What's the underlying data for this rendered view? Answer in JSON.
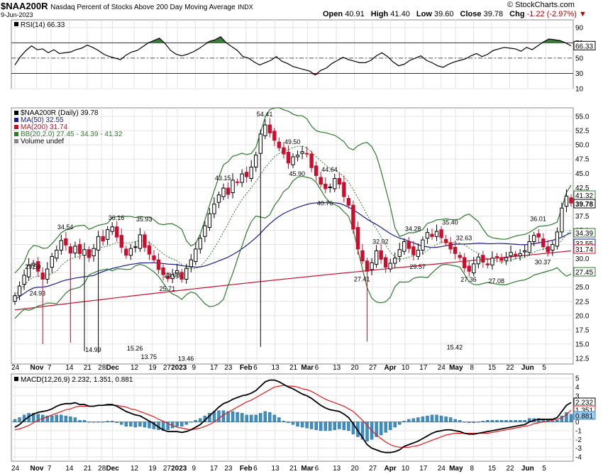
{
  "header": {
    "symbol": "$NAA200R",
    "description": "Nasdaq Percent of Stocks Above 200 Day Moving Average",
    "exchange": "INDX",
    "date": "9-Jun-2023",
    "open_label": "Open",
    "open": "40.91",
    "high_label": "High",
    "high": "41.40",
    "low_label": "Low",
    "low": "39.60",
    "close_label": "Close",
    "close": "39.78",
    "chg_label": "Chg",
    "chg": "-1.22 (-2.97%)",
    "watermark": "© StockCharts.com"
  },
  "colors": {
    "up": "#000000",
    "down": "#c8102e",
    "ma50": "#1a1a8c",
    "ma200": "#c8102e",
    "bb": "#2d7a2d",
    "macd": "#000000",
    "signal": "#e31a1c",
    "hist": "#3a8fc5"
  },
  "chart_data": [
    {
      "type": "line",
      "title": "RSI(14) 66.33",
      "legend": [
        {
          "text": "RSI(14) 66.33"
        }
      ],
      "ylim": [
        10,
        100
      ],
      "y_ticks": [
        "90",
        "70",
        "50",
        "30",
        "10"
      ],
      "levels": [
        70,
        50,
        30
      ],
      "last_value": "66.33",
      "series": [
        {
          "name": "RSI(14)",
          "values": [
            41,
            52,
            60,
            66,
            61,
            62,
            57,
            61,
            56,
            57,
            58,
            61,
            63,
            67,
            64,
            60,
            55,
            52,
            50,
            48,
            54,
            58,
            60,
            65,
            70,
            73,
            76,
            69,
            60,
            55,
            53,
            55,
            58,
            62,
            67,
            72,
            74,
            78,
            70,
            65,
            60,
            52,
            50,
            45,
            41,
            44,
            47,
            52,
            46,
            43,
            39,
            37,
            35,
            33,
            28,
            34,
            37,
            43,
            47,
            51,
            48,
            46,
            44,
            44,
            47,
            53,
            57,
            52,
            45,
            40,
            42,
            47,
            50,
            53,
            47,
            44,
            40,
            38,
            42,
            45,
            47,
            49,
            53,
            56,
            52,
            55,
            60,
            62,
            64,
            63,
            62,
            59,
            64,
            61,
            66,
            71,
            75,
            74,
            73,
            70,
            66
          ]
        }
      ]
    },
    {
      "type": "candlestick",
      "legend": [
        {
          "text": "$NAA200R (Daily) 39.78"
        },
        {
          "text": "MA(50) 32.55"
        },
        {
          "text": "MA(200) 31.74"
        },
        {
          "text": "BB(20,2.0) 27.45 - 34.39 - 41.32"
        },
        {
          "text": "Volume undef"
        }
      ],
      "ylim": [
        11.5,
        56.5
      ],
      "y_ticks": [
        "55.0",
        "52.5",
        "50.0",
        "47.5",
        "45.0",
        "42.5",
        "40.0",
        "37.5",
        "35.0",
        "32.5",
        "30.0",
        "27.5",
        "25.0",
        "22.5",
        "20.0",
        "17.5",
        "15.0",
        "12.5"
      ],
      "right_labels": [
        "41.32",
        "39.78",
        "34.39",
        "32.55",
        "31.74",
        "27.45"
      ],
      "annotations": [
        {
          "text": "29.59",
          "x": 4,
          "y": 29.59
        },
        {
          "text": "24.93",
          "x": 5,
          "y": 24.93
        },
        {
          "text": "34.54",
          "x": 11,
          "y": 34.54
        },
        {
          "text": "14.99",
          "x": 17,
          "y": 14.99
        },
        {
          "text": "36.16",
          "x": 22,
          "y": 36.16
        },
        {
          "text": "15.26",
          "x": 26,
          "y": 15.26
        },
        {
          "text": "13.75",
          "x": 29,
          "y": 13.75
        },
        {
          "text": "35.93",
          "x": 28,
          "y": 35.93
        },
        {
          "text": "28.08",
          "x": 34,
          "y": 28.08
        },
        {
          "text": "25.71",
          "x": 33,
          "y": 25.71
        },
        {
          "text": "13.46",
          "x": 37,
          "y": 13.46
        },
        {
          "text": "43.15",
          "x": 45,
          "y": 43.15
        },
        {
          "text": "54.41",
          "x": 54,
          "y": 54.41
        },
        {
          "text": "49.50",
          "x": 60,
          "y": 49.5
        },
        {
          "text": "45.90",
          "x": 61,
          "y": 45.9
        },
        {
          "text": "44.64",
          "x": 68,
          "y": 44.64
        },
        {
          "text": "40.76",
          "x": 67,
          "y": 40.76
        },
        {
          "text": "32.02",
          "x": 79,
          "y": 32.02
        },
        {
          "text": "27.41",
          "x": 75,
          "y": 27.41
        },
        {
          "text": "34.28",
          "x": 86,
          "y": 34.28
        },
        {
          "text": "29.57",
          "x": 87,
          "y": 29.57
        },
        {
          "text": "35.40",
          "x": 94,
          "y": 35.4
        },
        {
          "text": "32.63",
          "x": 97,
          "y": 32.63
        },
        {
          "text": "15.42",
          "x": 95,
          "y": 15.42
        },
        {
          "text": "27.36",
          "x": 98,
          "y": 27.36
        },
        {
          "text": "27.08",
          "x": 104,
          "y": 27.08
        },
        {
          "text": "36.01",
          "x": 113,
          "y": 36.01
        },
        {
          "text": "30.37",
          "x": 114,
          "y": 30.37
        }
      ],
      "close": [
        23.5,
        25.2,
        27.1,
        28.9,
        29.2,
        27.8,
        26.4,
        28.2,
        30.4,
        31.5,
        33.2,
        32.4,
        31.0,
        32.2,
        30.9,
        31.6,
        30.2,
        31.8,
        33.9,
        33.1,
        35.1,
        35.6,
        33.8,
        32.0,
        30.6,
        31.8,
        32.1,
        34.2,
        32.0,
        30.8,
        29.8,
        28.1,
        27.2,
        26.5,
        27.2,
        27.9,
        26.4,
        28.3,
        29.8,
        31.7,
        33.6,
        35.8,
        37.9,
        39.6,
        41.2,
        42.4,
        41.3,
        43.8,
        43.4,
        44.9,
        44.4,
        46.1,
        48.2,
        51.9,
        53.5,
        52.1,
        50.8,
        49.5,
        48.4,
        46.8,
        47.9,
        48.2,
        48.8,
        48.4,
        46.0,
        44.6,
        43.1,
        42.3,
        42.6,
        44.1,
        43.1,
        40.9,
        39.4,
        35.2,
        31.7,
        29.6,
        27.8,
        29.3,
        31.4,
        29.9,
        28.5,
        29.2,
        30.1,
        31.6,
        33.0,
        31.8,
        30.7,
        31.5,
        33.3,
        34.6,
        33.9,
        34.8,
        33.7,
        32.8,
        31.7,
        30.9,
        30.2,
        28.4,
        27.8,
        29.1,
        30.3,
        29.4,
        28.9,
        30.1,
        30.4,
        29.7,
        30.2,
        31.1,
        30.5,
        30.9,
        31.4,
        33.0,
        34.1,
        33.8,
        32.1,
        31.2,
        32.5,
        34.7,
        38.9,
        41.0,
        39.78
      ],
      "high_low": "per-bar wicks ±0.6 to ±1.2 around open/close; long lower wicks on Nov 17 to 14.99, Dec 9 to 15.26, Dec 14 to 13.75, Dec 28 to 13.46, Mar 22 to 14.5, Apr 20 to 15.42"
    },
    {
      "type": "line",
      "title": "MACD(12,26,9) 2.232, 1.351, 0.881",
      "legend": [
        {
          "text": "MACD(12,26,9) 2.232, 1.351, 0.881"
        }
      ],
      "ylim": [
        -4.5,
        5.5
      ],
      "y_ticks": [
        "5",
        "4",
        "3",
        "2",
        "1",
        "0",
        "-1",
        "-2",
        "-3",
        "-4"
      ],
      "right_labels": [
        "2.232",
        "1.351",
        "0.881"
      ],
      "series": [
        {
          "name": "MACD",
          "values": [
            -0.6,
            -0.3,
            0.2,
            0.6,
            0.9,
            1.1,
            1.2,
            1.3,
            1.5,
            1.8,
            2.0,
            2.1,
            2.1,
            2.2,
            2.0,
            2.0,
            1.8,
            1.8,
            1.9,
            1.9,
            2.0,
            2.0,
            1.8,
            1.5,
            1.2,
            1.0,
            0.8,
            0.7,
            0.4,
            0.1,
            -0.2,
            -0.6,
            -0.9,
            -1.1,
            -1.1,
            -1.1,
            -1.2,
            -1.1,
            -0.9,
            -0.6,
            -0.3,
            0.2,
            0.7,
            1.2,
            1.7,
            2.1,
            2.3,
            2.6,
            2.8,
            3.0,
            3.1,
            3.3,
            3.6,
            4.1,
            4.6,
            4.8,
            4.8,
            4.6,
            4.3,
            4.0,
            3.8,
            3.5,
            3.2,
            3.0,
            2.7,
            2.3,
            1.9,
            1.6,
            1.4,
            1.3,
            1.2,
            0.9,
            0.5,
            -0.2,
            -1.0,
            -1.8,
            -2.6,
            -3.0,
            -3.2,
            -3.4,
            -3.5,
            -3.5,
            -3.4,
            -3.2,
            -2.8,
            -2.6,
            -2.4,
            -2.2,
            -1.9,
            -1.6,
            -1.3,
            -1.1,
            -1.0,
            -0.9,
            -0.9,
            -1.0,
            -1.1,
            -1.3,
            -1.4,
            -1.4,
            -1.3,
            -1.2,
            -1.1,
            -1.0,
            -0.9,
            -0.8,
            -0.7,
            -0.6,
            -0.5,
            -0.4,
            -0.3,
            0.0,
            0.2,
            0.3,
            0.3,
            0.3,
            0.3,
            0.5,
            1.2,
            1.9,
            2.23
          ]
        },
        {
          "name": "Signal",
          "values": [
            -0.9,
            -0.8,
            -0.6,
            -0.4,
            -0.1,
            0.2,
            0.4,
            0.6,
            0.8,
            1.0,
            1.2,
            1.4,
            1.5,
            1.7,
            1.8,
            1.8,
            1.8,
            1.8,
            1.9,
            1.9,
            1.9,
            1.9,
            1.9,
            1.8,
            1.7,
            1.5,
            1.4,
            1.2,
            1.0,
            0.8,
            0.6,
            0.3,
            0.1,
            -0.2,
            -0.4,
            -0.6,
            -0.7,
            -0.8,
            -0.9,
            -0.8,
            -0.7,
            -0.5,
            -0.3,
            0.0,
            0.4,
            0.8,
            1.1,
            1.4,
            1.7,
            2.0,
            2.3,
            2.5,
            2.8,
            3.1,
            3.4,
            3.7,
            4.0,
            4.1,
            4.2,
            4.1,
            4.1,
            4.0,
            3.8,
            3.7,
            3.5,
            3.2,
            2.9,
            2.6,
            2.4,
            2.2,
            2.0,
            1.8,
            1.5,
            1.2,
            0.7,
            0.2,
            -0.4,
            -1.0,
            -1.5,
            -1.9,
            -2.3,
            -2.6,
            -2.8,
            -2.9,
            -2.9,
            -2.9,
            -2.8,
            -2.7,
            -2.5,
            -2.3,
            -2.1,
            -1.9,
            -1.7,
            -1.5,
            -1.4,
            -1.3,
            -1.3,
            -1.3,
            -1.3,
            -1.3,
            -1.3,
            -1.3,
            -1.3,
            -1.2,
            -1.1,
            -1.0,
            -0.9,
            -0.8,
            -0.7,
            -0.6,
            -0.5,
            -0.4,
            -0.2,
            -0.1,
            0.0,
            0.1,
            0.2,
            0.3,
            0.5,
            0.8,
            1.35
          ]
        }
      ]
    }
  ],
  "x_axis": {
    "labels": [
      {
        "text": "24",
        "i": 0,
        "bold": false
      },
      {
        "text": "Nov",
        "i": 6,
        "bold": true
      },
      {
        "text": "7",
        "i": 10,
        "bold": false
      },
      {
        "text": "14",
        "i": 15,
        "bold": false
      },
      {
        "text": "21",
        "i": 20,
        "bold": false
      },
      {
        "text": "28",
        "i": 24,
        "bold": false
      },
      {
        "text": "Dec",
        "i": 27,
        "bold": true
      },
      {
        "text": "12",
        "i": 33,
        "bold": false
      },
      {
        "text": "19",
        "i": 38,
        "bold": false
      },
      {
        "text": "27",
        "i": 42,
        "bold": false
      },
      {
        "text": "2023",
        "i": 45,
        "bold": true
      },
      {
        "text": "9",
        "i": 50,
        "bold": false
      },
      {
        "text": "17",
        "i": 55,
        "bold": false
      },
      {
        "text": "23",
        "i": 59,
        "bold": false
      },
      {
        "text": "Feb",
        "i": 64,
        "bold": true
      },
      {
        "text": "6",
        "i": 67,
        "bold": false
      },
      {
        "text": "13",
        "i": 72,
        "bold": false
      },
      {
        "text": "21",
        "i": 77,
        "bold": false
      },
      {
        "text": "Mar",
        "i": 81,
        "bold": true
      },
      {
        "text": "6",
        "i": 84,
        "bold": false
      },
      {
        "text": "13",
        "i": 89,
        "bold": false
      },
      {
        "text": "20",
        "i": 94,
        "bold": false
      },
      {
        "text": "27",
        "i": 99,
        "bold": false
      },
      {
        "text": "Apr",
        "i": 104,
        "bold": true
      },
      {
        "text": "10",
        "i": 108,
        "bold": false
      },
      {
        "text": "17",
        "i": 113,
        "bold": false
      },
      {
        "text": "24",
        "i": 118,
        "bold": false
      },
      {
        "text": "May",
        "i": 122,
        "bold": true
      },
      {
        "text": "8",
        "i": 127,
        "bold": false
      },
      {
        "text": "15",
        "i": 132,
        "bold": false
      },
      {
        "text": "22",
        "i": 137,
        "bold": false
      },
      {
        "text": "Jun",
        "i": 142,
        "bold": true
      },
      {
        "text": "5",
        "i": 147,
        "bold": false
      }
    ]
  }
}
